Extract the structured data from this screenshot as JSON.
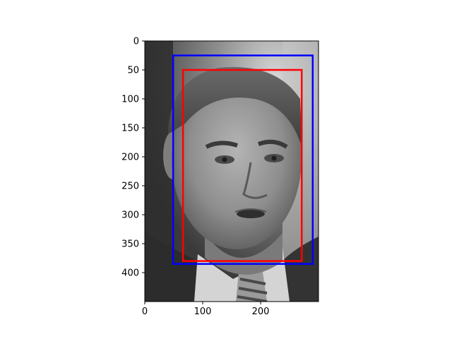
{
  "chart_data": {
    "type": "image",
    "title": "",
    "xlabel": "",
    "ylabel": "",
    "image_content": "grayscale portrait photograph",
    "xlim": [
      0,
      300
    ],
    "ylim": [
      450,
      0
    ],
    "y_axis_inverted": true,
    "xticks": [
      0,
      100,
      200
    ],
    "yticks": [
      0,
      50,
      100,
      150,
      200,
      250,
      300,
      350,
      400
    ],
    "boxes": [
      {
        "color": "#0000ff",
        "x0": 49,
        "y0": 25,
        "x1": 290,
        "y1": 385
      },
      {
        "color": "#ff0000",
        "x0": 66,
        "y0": 50,
        "x1": 271,
        "y1": 380
      }
    ]
  }
}
